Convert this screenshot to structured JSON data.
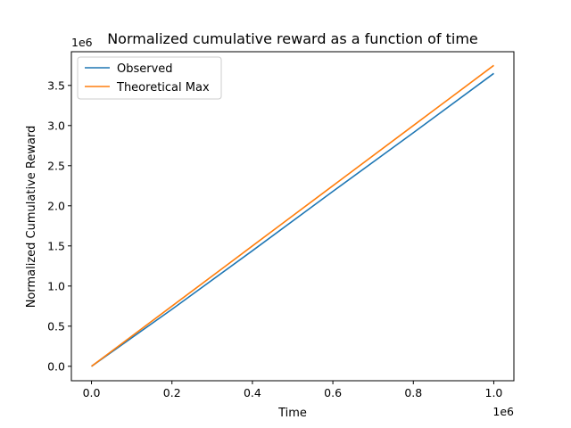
{
  "chart_data": {
    "type": "line",
    "title": "Normalized cumulative reward as a function of time",
    "xlabel": "Time",
    "ylabel": "Normalized Cumulative Reward",
    "x_offset_label": "1e6",
    "y_offset_label": "1e6",
    "xlim": [
      -0.05,
      1.05
    ],
    "ylim": [
      -0.18,
      3.92
    ],
    "x_ticks": [
      0.0,
      0.2,
      0.4,
      0.6,
      0.8,
      1.0
    ],
    "x_tick_labels": [
      "0.0",
      "0.2",
      "0.4",
      "0.6",
      "0.8",
      "1.0"
    ],
    "y_ticks": [
      0.0,
      0.5,
      1.0,
      1.5,
      2.0,
      2.5,
      3.0,
      3.5
    ],
    "y_tick_labels": [
      "0.0",
      "0.5",
      "1.0",
      "1.5",
      "2.0",
      "2.5",
      "3.0",
      "3.5"
    ],
    "grid": false,
    "legend": "top-left",
    "series": [
      {
        "name": "Observed",
        "color": "#1f77b4",
        "x": [
          0.0,
          0.2,
          0.4,
          0.6,
          0.8,
          1.0
        ],
        "y": [
          0.0,
          0.71,
          1.44,
          2.18,
          2.91,
          3.65
        ]
      },
      {
        "name": "Theoretical Max",
        "color": "#ff7f0e",
        "x": [
          0.0,
          0.2,
          0.4,
          0.6,
          0.8,
          1.0
        ],
        "y": [
          0.0,
          0.75,
          1.5,
          2.25,
          3.0,
          3.75
        ]
      }
    ]
  }
}
